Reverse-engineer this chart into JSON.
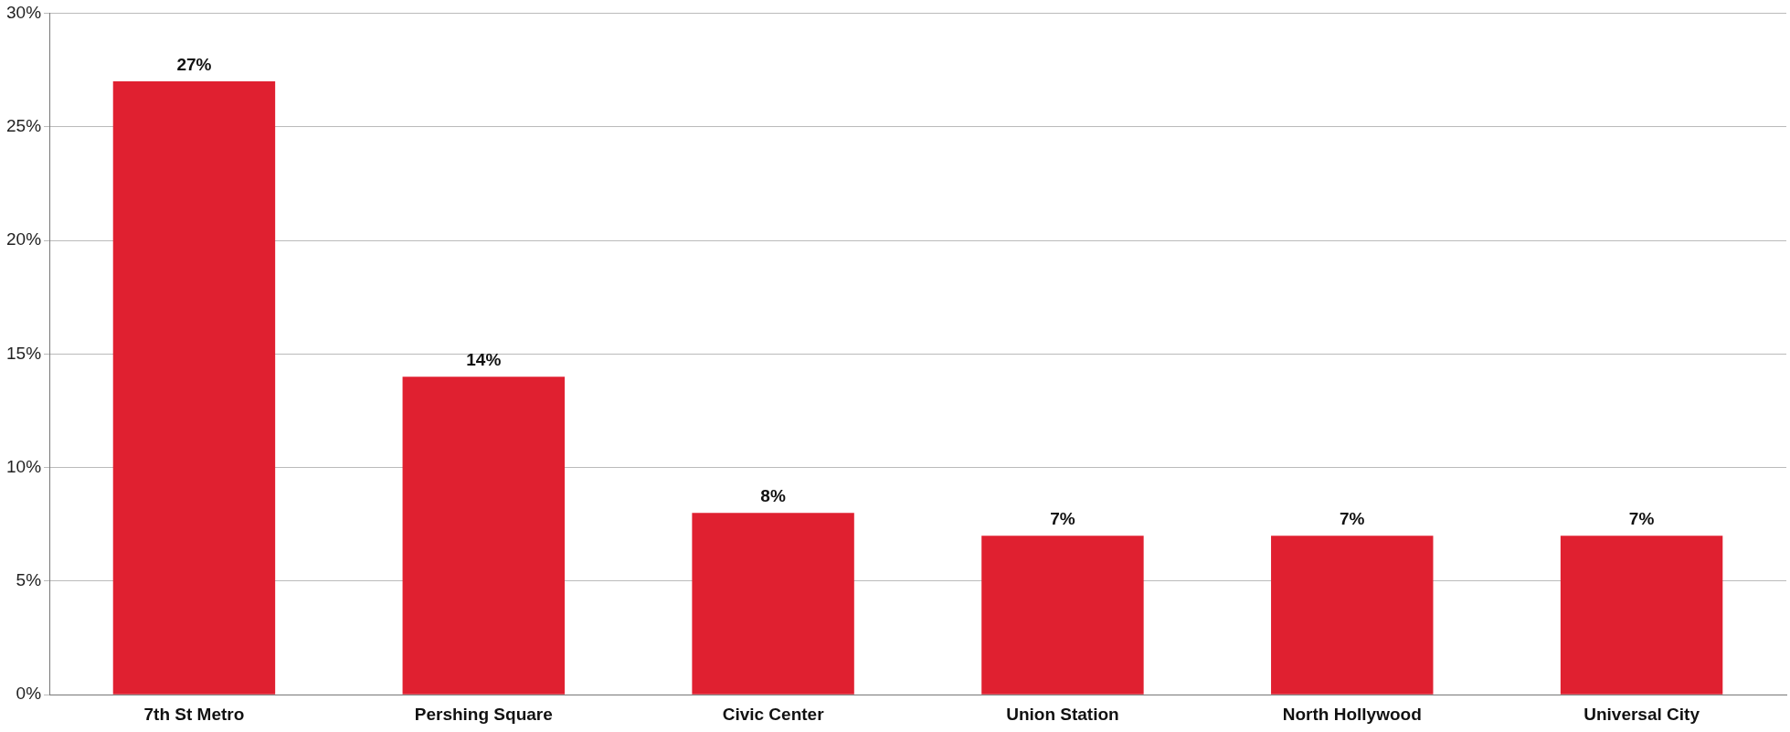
{
  "chart_data": {
    "type": "bar",
    "categories": [
      "7th St Metro",
      "Pershing Square",
      "Civic Center",
      "Union Station",
      "North Hollywood",
      "Universal City"
    ],
    "values": [
      27,
      14,
      8,
      7,
      7,
      7
    ],
    "value_labels": [
      "27%",
      "14%",
      "8%",
      "7%",
      "7%",
      "7%"
    ],
    "color": "#e02030",
    "ylim": [
      0,
      30
    ],
    "yticks": [
      {
        "value": 0,
        "label": "0%"
      },
      {
        "value": 5,
        "label": "5%"
      },
      {
        "value": 10,
        "label": "10%"
      },
      {
        "value": 15,
        "label": "15%"
      },
      {
        "value": 20,
        "label": "20%"
      },
      {
        "value": 25,
        "label": "25%"
      },
      {
        "value": 30,
        "label": "30%"
      }
    ],
    "grid": "y",
    "legend": false
  }
}
